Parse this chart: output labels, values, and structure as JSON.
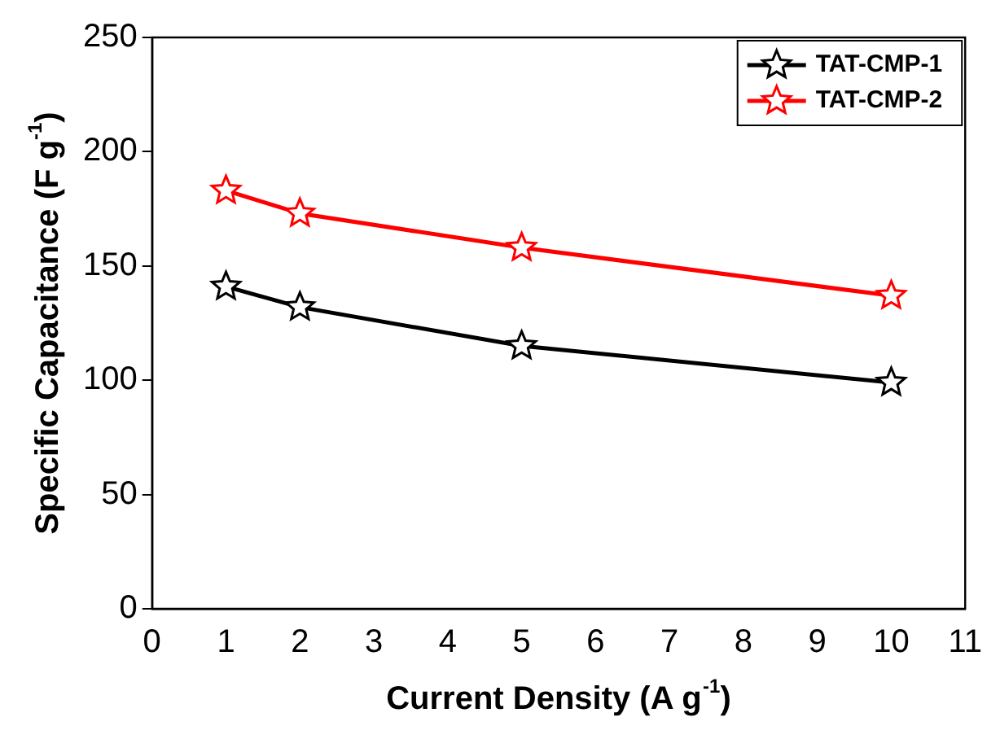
{
  "chart_data": {
    "type": "line",
    "xlabel": "Current Density (A g$^{-1}$)",
    "ylabel": "Specific Capacitance (F g$^{-1}$)",
    "x": [
      1,
      2,
      5,
      10
    ],
    "series": [
      {
        "name": "TAT-CMP-1",
        "color": "#000000",
        "values": [
          141,
          132,
          115,
          99
        ]
      },
      {
        "name": "TAT-CMP-2",
        "color": "#ff0000",
        "values": [
          183,
          173,
          158,
          137
        ]
      }
    ],
    "xlim": [
      0,
      11
    ],
    "xticks": [
      0,
      1,
      2,
      3,
      4,
      5,
      6,
      7,
      8,
      9,
      10,
      11
    ],
    "ylim": [
      0,
      250
    ],
    "yticks": [
      0,
      50,
      100,
      150,
      200,
      250
    ],
    "grid": false,
    "legend": "top right",
    "marker": "star",
    "line_style": "solid"
  }
}
